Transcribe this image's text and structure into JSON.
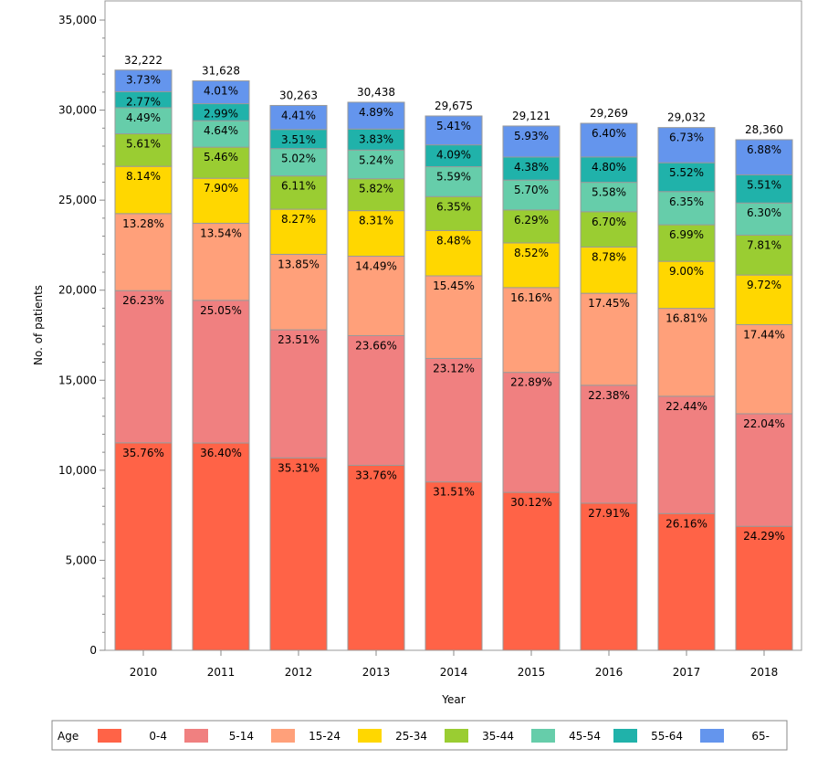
{
  "chart_data": {
    "type": "bar",
    "stacked": true,
    "xlabel": "Year",
    "ylabel": "No. of patients",
    "ylim": [
      0,
      35000
    ],
    "yticks": [
      "0",
      "5,000",
      "10,000",
      "15,000",
      "20,000",
      "25,000",
      "30,000",
      "35,000"
    ],
    "categories": [
      "2010",
      "2011",
      "2012",
      "2013",
      "2014",
      "2015",
      "2016",
      "2017",
      "2018"
    ],
    "totals": [
      32222,
      31628,
      30263,
      30438,
      29675,
      29121,
      29269,
      29032,
      28360
    ],
    "total_labels": [
      "32,222",
      "31,628",
      "30,263",
      "30,438",
      "29,675",
      "29,121",
      "29,269",
      "29,032",
      "28,360"
    ],
    "legend_title": "Age",
    "legend_position": "bottom",
    "series": [
      {
        "name": "0-4",
        "color": "#FF6347",
        "percent": [
          35.76,
          36.4,
          35.31,
          33.76,
          31.51,
          30.12,
          27.91,
          26.16,
          24.29
        ]
      },
      {
        "name": "5-14",
        "color": "#F08080",
        "percent": [
          26.23,
          25.05,
          23.51,
          23.66,
          23.12,
          22.89,
          22.38,
          22.44,
          22.04
        ]
      },
      {
        "name": "15-24",
        "color": "#FFA07A",
        "percent": [
          13.28,
          13.54,
          13.85,
          14.49,
          15.45,
          16.16,
          17.45,
          16.81,
          17.44
        ]
      },
      {
        "name": "25-34",
        "color": "#FFD700",
        "percent": [
          8.14,
          7.9,
          8.27,
          8.31,
          8.48,
          8.52,
          8.78,
          9.0,
          9.72
        ]
      },
      {
        "name": "35-44",
        "color": "#9ACD32",
        "percent": [
          5.61,
          5.46,
          6.11,
          5.82,
          6.35,
          6.29,
          6.7,
          6.99,
          7.81
        ]
      },
      {
        "name": "45-54",
        "color": "#66CDAA",
        "percent": [
          4.49,
          4.64,
          5.02,
          5.24,
          5.59,
          5.7,
          5.58,
          6.35,
          6.3
        ]
      },
      {
        "name": "55-64",
        "color": "#20B2AA",
        "percent": [
          2.77,
          2.99,
          3.51,
          3.83,
          4.09,
          4.38,
          4.8,
          5.52,
          5.51
        ]
      },
      {
        "name": "65-",
        "color": "#6495ED",
        "percent": [
          3.73,
          4.01,
          4.41,
          4.89,
          5.41,
          5.93,
          6.4,
          6.73,
          6.88
        ]
      }
    ]
  }
}
